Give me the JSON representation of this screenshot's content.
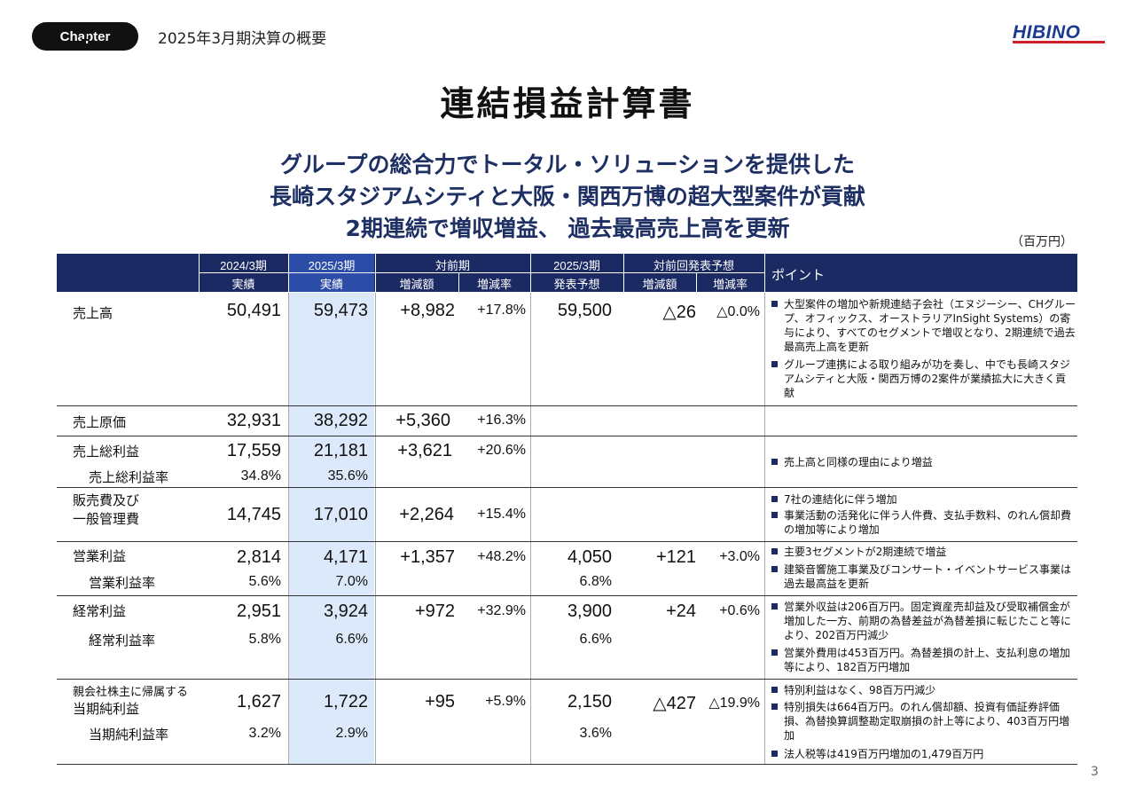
{
  "chapter": {
    "label": "Chapter",
    "number": "1"
  },
  "section_title": "2025年3月期決算の概要",
  "logo_text": "HIBINO",
  "page_title": "連結損益計算書",
  "headline": [
    "グループの総合力でトータル・ソリューションを提供した",
    "長崎スタジアムシティと大阪・関西万博の超大型案件が貢献",
    "2期連続で増収増益、 過去最高売上高を更新"
  ],
  "unit": "（百万円）",
  "page_number": "3",
  "colors": {
    "header_bg": "#1b2a63",
    "highlight": "#dce9fb"
  },
  "header": {
    "fy2024": "2024/3期",
    "fy2024_sub": "実績",
    "fy2025": "2025/3期",
    "fy2025_sub": "実績",
    "yoy": "対前期",
    "yoy_amount": "増減額",
    "yoy_rate": "増減率",
    "forecast": "2025/3期",
    "forecast_sub": "発表予想",
    "vs_forecast": "対前回発表予想",
    "vs_amount": "増減額",
    "vs_rate": "増減率",
    "points": "ポイント"
  },
  "rows": {
    "sales": {
      "label": "売上高",
      "fy2024": "50,491",
      "fy2025": "59,473",
      "yoy_amount": "+8,982",
      "yoy_rate": "+17.8%",
      "forecast": "59,500",
      "vs_amount": "△26",
      "vs_rate": "△0.0%"
    },
    "cogs": {
      "label": "売上原価",
      "fy2024": "32,931",
      "fy2025": "38,292",
      "yoy_amount": "+5,360",
      "yoy_rate": "+16.3%"
    },
    "gross": {
      "label": "売上総利益",
      "fy2024": "17,559",
      "fy2025": "21,181",
      "yoy_amount": "+3,621",
      "yoy_rate": "+20.6%",
      "rate_label": "売上総利益率",
      "rate_2024": "34.8%",
      "rate_2025": "35.6%"
    },
    "sga": {
      "label1": "販売費及び",
      "label2": "一般管理費",
      "fy2024": "14,745",
      "fy2025": "17,010",
      "yoy_amount": "+2,264",
      "yoy_rate": "+15.4%"
    },
    "op": {
      "label": "営業利益",
      "fy2024": "2,814",
      "fy2025": "4,171",
      "yoy_amount": "+1,357",
      "yoy_rate": "+48.2%",
      "forecast": "4,050",
      "vs_amount": "+121",
      "vs_rate": "+3.0%",
      "rate_label": "営業利益率",
      "rate_2024": "5.6%",
      "rate_2025": "7.0%",
      "rate_forecast": "6.8%"
    },
    "ord": {
      "label": "経常利益",
      "fy2024": "2,951",
      "fy2025": "3,924",
      "yoy_amount": "+972",
      "yoy_rate": "+32.9%",
      "forecast": "3,900",
      "vs_amount": "+24",
      "vs_rate": "+0.6%",
      "rate_label": "経常利益率",
      "rate_2024": "5.8%",
      "rate_2025": "6.6%",
      "rate_forecast": "6.6%"
    },
    "net": {
      "label1": "親会社株主に帰属する",
      "label2": "当期純利益",
      "fy2024": "1,627",
      "fy2025": "1,722",
      "yoy_amount": "+95",
      "yoy_rate": "+5.9%",
      "forecast": "2,150",
      "vs_amount": "△427",
      "vs_rate": "△19.9%",
      "rate_label": "当期純利益率",
      "rate_2024": "3.2%",
      "rate_2025": "2.9%",
      "rate_forecast": "3.6%"
    }
  },
  "points": {
    "sales": [
      "大型案件の増加や新規連結子会社（エヌジーシー、CHグループ、オフィックス、オーストラリアInSight Systems）の寄与により、すべてのセグメントで増収となり、2期連続で過去最高売上高を更新",
      "グループ連携による取り組みが功を奏し、中でも長崎スタジアムシティと大阪・関西万博の2案件が業績拡大に大きく貢献"
    ],
    "gross": [
      "売上高と同様の理由により増益"
    ],
    "sga": [
      "7社の連結化に伴う増加",
      "事業活動の活発化に伴う人件費、支払手数料、のれん償却費の増加等により増加"
    ],
    "op": [
      "主要3セグメントが2期連続で増益",
      "建築音響施工事業及びコンサート・イベントサービス事業は過去最高益を更新"
    ],
    "ord": [
      "営業外収益は206百万円。固定資産売却益及び受取補償金が増加した一方、前期の為替差益が為替差損に転じたこと等により、202百万円減少",
      "営業外費用は453百万円。為替差損の計上、支払利息の増加等により、182百万円増加"
    ],
    "net": [
      "特別利益はなく、98百万円減少",
      "特別損失は664百万円。のれん償却額、投資有価証券評価損、為替換算調整勘定取崩損の計上等により、403百万円増加",
      "法人税等は419百万円増加の1,479百万円"
    ]
  }
}
